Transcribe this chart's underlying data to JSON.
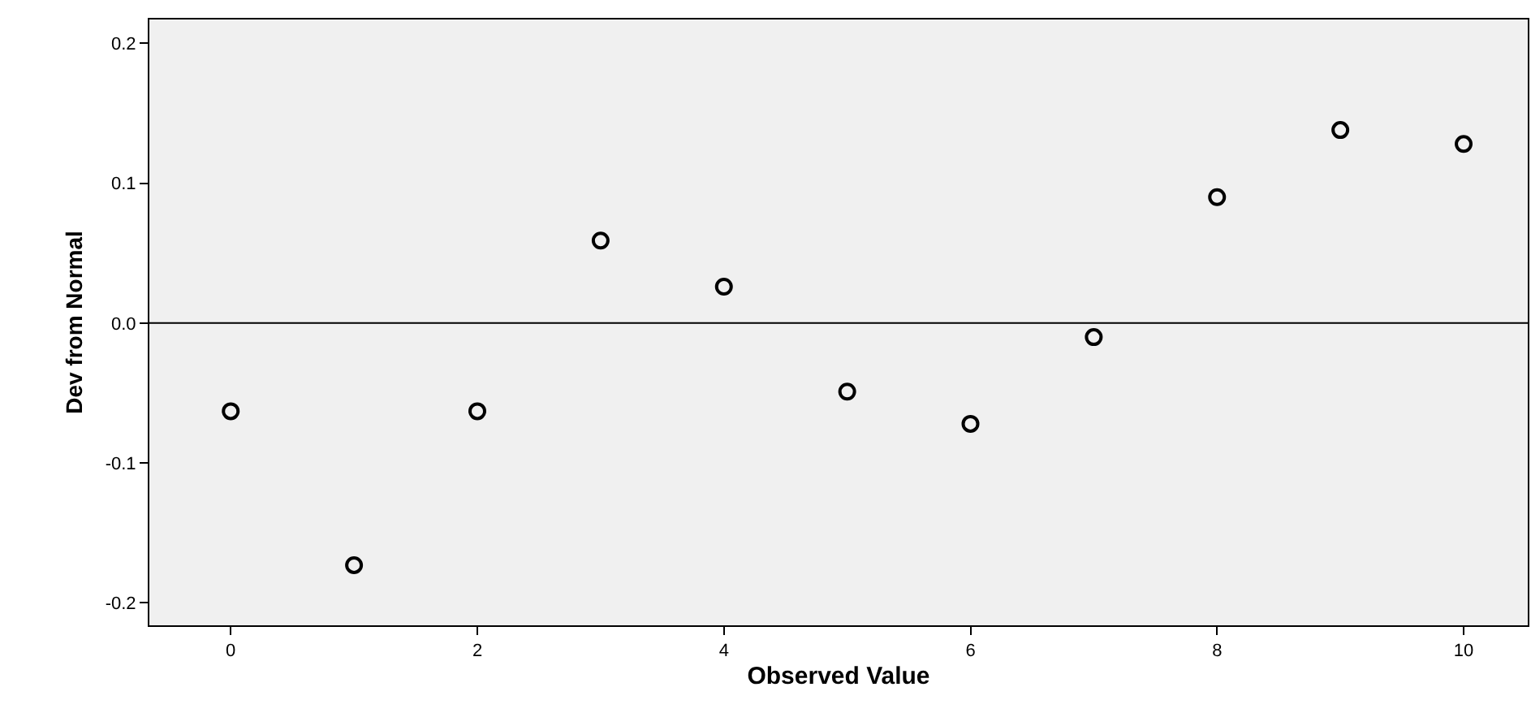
{
  "chart_data": {
    "type": "scatter",
    "xlabel": "Observed Value",
    "ylabel": "Dev from Normal",
    "x": [
      0,
      1,
      2,
      3,
      4,
      5,
      6,
      7,
      8,
      9,
      10
    ],
    "series": [
      {
        "color": "#000000",
        "values": [
          -0.063,
          -0.173,
          -0.063,
          0.059,
          0.026,
          -0.049,
          -0.072,
          -0.01,
          0.09,
          0.138,
          0.128
        ]
      }
    ],
    "xlim": [
      -0.66,
      10.52
    ],
    "xticks": [
      0,
      2,
      4,
      6,
      8,
      10
    ],
    "ylim": [
      -0.216,
      0.217
    ],
    "yticks": [
      {
        "value": -0.2,
        "label": "-0.2"
      },
      {
        "value": -0.1,
        "label": "-0.1"
      },
      {
        "value": 0,
        "label": "0.0"
      },
      {
        "value": 0.1,
        "label": "0.1"
      },
      {
        "value": 0.2,
        "label": "0.2"
      }
    ],
    "ref_lines": [
      {
        "axis": "y",
        "value": 0,
        "color": "#000000"
      }
    ],
    "grid": false,
    "legend": false,
    "marker": "circle"
  }
}
